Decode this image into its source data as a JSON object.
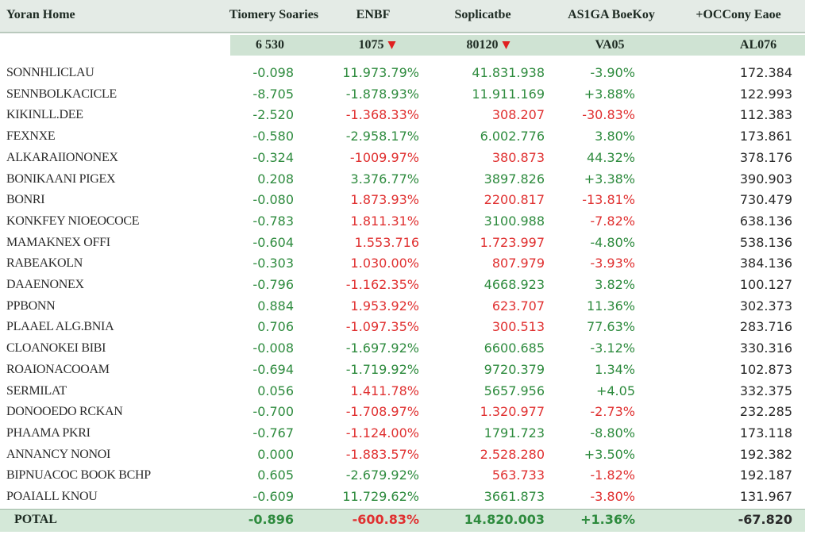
{
  "header": {
    "columns": [
      "Yoran Home",
      "Tiomery Soaries",
      "ENBF",
      "Soplicatbe",
      "AS1GA BoeKoy",
      "+OCCony Eaoe"
    ],
    "summary": [
      "6 530",
      "1075",
      "80120",
      "VA05",
      "AL076"
    ]
  },
  "table": {
    "rows": [
      {
        "name": "SONNHLICLAU",
        "cells": [
          "-0.098",
          "11.973.79%",
          "41.831.938",
          "-3.90%",
          "172.384"
        ],
        "tones": [
          "#2e8b3e",
          "#2e8b3e",
          "#2e8b3e",
          "#2e8b3e"
        ]
      },
      {
        "name": "SENNBOLKACICLE",
        "cells": [
          "-8.705",
          "-1.878.93%",
          "11.911.169",
          "+3.88%",
          "122.993"
        ],
        "tones": [
          "#2e8b3e",
          "#2e8b3e",
          "#2e8b3e",
          "#2e8b3e"
        ]
      },
      {
        "name": "KIKINLL.DEE",
        "cells": [
          "-2.520",
          "-1.368.33%",
          "308.207",
          "-30.83%",
          "112.383"
        ],
        "tones": [
          "#2e8b3e",
          "#e03030",
          "#e03030",
          "#e03030"
        ]
      },
      {
        "name": "FEXNXE",
        "cells": [
          "-0.580",
          "-2.958.17%",
          "6.002.776",
          "3.80%",
          "173.861"
        ],
        "tones": [
          "#2e8b3e",
          "#2e8b3e",
          "#2e8b3e",
          "#2e8b3e"
        ]
      },
      {
        "name": "ALKARAIIONONEX",
        "cells": [
          "-0.324",
          "-1009.97%",
          "380.873",
          "44.32%",
          "378.176"
        ],
        "tones": [
          "#2e8b3e",
          "#e03030",
          "#e03030",
          "#2e8b3e"
        ]
      },
      {
        "name": "BONIKAANI PIGEX",
        "cells": [
          "0.208",
          "3.376.77%",
          "3897.826",
          "+3.38%",
          "390.903"
        ],
        "tones": [
          "#2e8b3e",
          "#2e8b3e",
          "#2e8b3e",
          "#2e8b3e"
        ]
      },
      {
        "name": "BONRI",
        "cells": [
          "-0.080",
          "1.873.93%",
          "2200.817",
          "-13.81%",
          "730.479"
        ],
        "tones": [
          "#2e8b3e",
          "#e03030",
          "#e03030",
          "#e03030"
        ]
      },
      {
        "name": "KONKFEY NIOEOCOCE",
        "cells": [
          "-0.783",
          "1.811.31%",
          "3100.988",
          "-7.82%",
          "638.136"
        ],
        "tones": [
          "#2e8b3e",
          "#e03030",
          "#2e8b3e",
          "#e03030"
        ]
      },
      {
        "name": "MAMAKNEX OFFI",
        "cells": [
          "-0.604",
          "1.553.716",
          "1.723.997",
          "-4.80%",
          "538.136"
        ],
        "tones": [
          "#2e8b3e",
          "#e03030",
          "#e03030",
          "#2e8b3e"
        ]
      },
      {
        "name": "RABEAKOLN",
        "cells": [
          "-0.303",
          "1.030.00%",
          "807.979",
          "-3.93%",
          "384.136"
        ],
        "tones": [
          "#2e8b3e",
          "#e03030",
          "#e03030",
          "#e03030"
        ]
      },
      {
        "name": "DAAENONEX",
        "cells": [
          "-0.796",
          "-1.162.35%",
          "4668.923",
          "3.82%",
          "100.127"
        ],
        "tones": [
          "#2e8b3e",
          "#e03030",
          "#2e8b3e",
          "#2e8b3e"
        ]
      },
      {
        "name": "PPBONN",
        "cells": [
          "0.884",
          "1.953.92%",
          "623.707",
          "11.36%",
          "302.373"
        ],
        "tones": [
          "#2e8b3e",
          "#e03030",
          "#e03030",
          "#2e8b3e"
        ]
      },
      {
        "name": "PLAAEL ALG.BNIA",
        "cells": [
          "0.706",
          "-1.097.35%",
          "300.513",
          "77.63%",
          "283.716"
        ],
        "tones": [
          "#2e8b3e",
          "#e03030",
          "#e03030",
          "#2e8b3e"
        ]
      },
      {
        "name": "CLOANOKEI BIBI",
        "cells": [
          "-0.008",
          "-1.697.92%",
          "6600.685",
          "-3.12%",
          "330.316"
        ],
        "tones": [
          "#2e8b3e",
          "#2e8b3e",
          "#2e8b3e",
          "#2e8b3e"
        ]
      },
      {
        "name": "ROAIONACOOAM",
        "cells": [
          "-0.694",
          "-1.719.92%",
          "9720.379",
          "1.34%",
          "102.873"
        ],
        "tones": [
          "#2e8b3e",
          "#2e8b3e",
          "#2e8b3e",
          "#2e8b3e"
        ]
      },
      {
        "name": "SERMILAT",
        "cells": [
          "0.056",
          "1.411.78%",
          "5657.956",
          "+4.05",
          "332.375"
        ],
        "tones": [
          "#2e8b3e",
          "#e03030",
          "#2e8b3e",
          "#2e8b3e"
        ]
      },
      {
        "name": "DONOOEDO RCKAN",
        "cells": [
          "-0.700",
          "-1.708.97%",
          "1.320.977",
          "-2.73%",
          "232.285"
        ],
        "tones": [
          "#2e8b3e",
          "#e03030",
          "#e03030",
          "#e03030"
        ]
      },
      {
        "name": "PHAAMA PKRI",
        "cells": [
          "-0.767",
          "-1.124.00%",
          "1791.723",
          "-8.80%",
          "173.118"
        ],
        "tones": [
          "#2e8b3e",
          "#e03030",
          "#2e8b3e",
          "#2e8b3e"
        ]
      },
      {
        "name": "ANNANCY NONOI",
        "cells": [
          "0.000",
          "-1.883.57%",
          "2.528.280",
          "+3.50%",
          "192.382"
        ],
        "tones": [
          "#2e8b3e",
          "#e03030",
          "#e03030",
          "#2e8b3e"
        ]
      },
      {
        "name": "BIPNUACOC BOOK BCHP",
        "cells": [
          "0.605",
          "-2.679.92%",
          "563.733",
          "-1.82%",
          "192.187"
        ],
        "tones": [
          "#2e8b3e",
          "#2e8b3e",
          "#e03030",
          "#e03030"
        ]
      },
      {
        "name": "POAIALL KNOU",
        "cells": [
          "-0.609",
          "11.729.62%",
          "3661.873",
          "-3.80%",
          "131.967"
        ],
        "tones": [
          "#2e8b3e",
          "#2e8b3e",
          "#2e8b3e",
          "#e03030"
        ]
      }
    ],
    "total": {
      "name": "POTAL",
      "cells": [
        "-0.896",
        "-600.83%",
        "14.820.003",
        "+1.36%",
        "-67.820"
      ],
      "tones": [
        "#2e8b3e",
        "#e03030",
        "#2e8b3e",
        "#2e8b3e"
      ]
    }
  }
}
